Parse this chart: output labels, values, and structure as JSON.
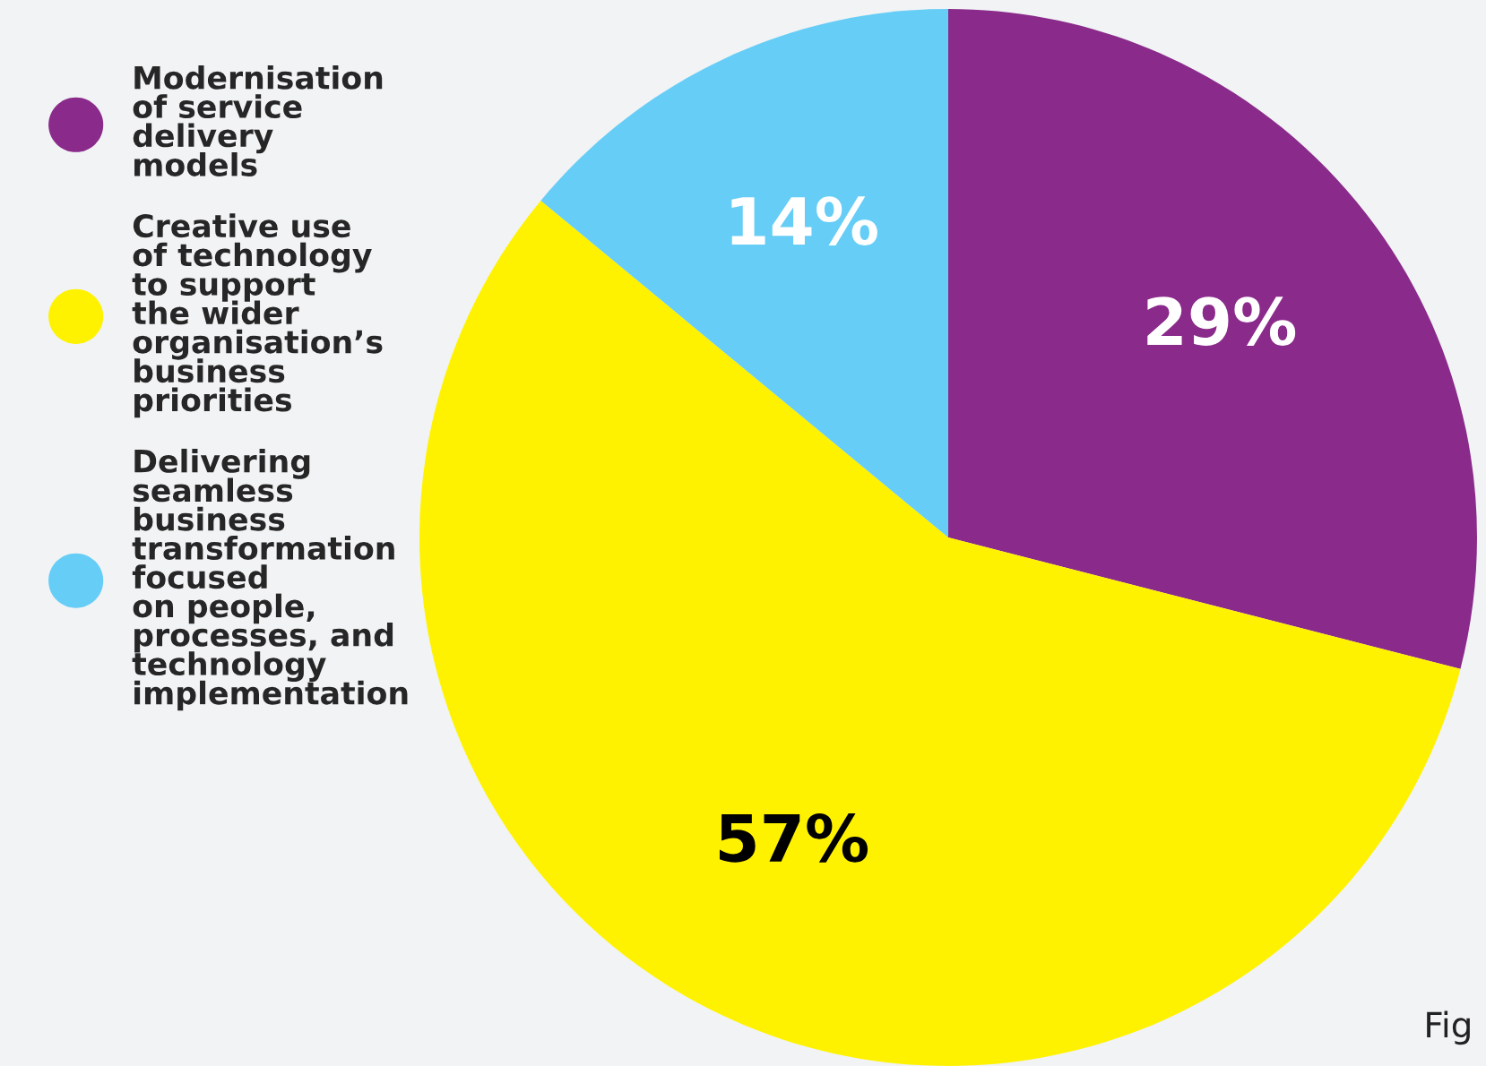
{
  "chart_data": {
    "type": "pie",
    "categories": [
      "Modernisation\nof service\ndelivery\nmodels",
      "Creative use\nof technology\nto support\nthe wider\norganisation’s\nbusiness\npriorities",
      "Delivering\nseamless\nbusiness\ntransformation\nfocused\non people,\nprocesses, and\ntechnology\nimplementation"
    ],
    "values": [
      29,
      57,
      14
    ],
    "colors": [
      "#8a2a8a",
      "#fff200",
      "#66cdf7"
    ],
    "value_labels": [
      "29%",
      "57%",
      "14%"
    ],
    "legend": "left",
    "annotations": [
      "Fig"
    ]
  }
}
